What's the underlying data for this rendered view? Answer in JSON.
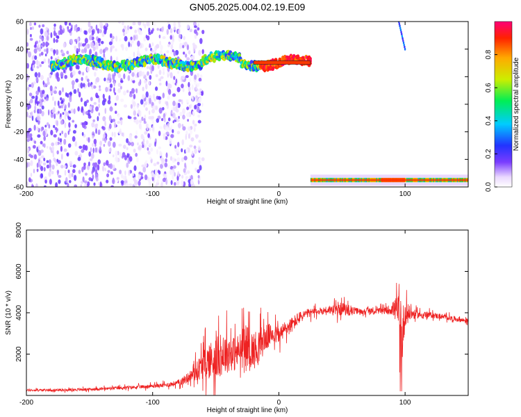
{
  "title": "GN05.2025.004.02.19.E09",
  "chart_data": [
    {
      "type": "heatmap",
      "xlabel": "Height of straight line (km)",
      "ylabel": "Frequency (Hz)",
      "xlim": [
        -200,
        150
      ],
      "ylim": [
        -60,
        60
      ],
      "x_ticks": [
        -200,
        -100,
        0,
        100
      ],
      "y_ticks": [
        -60,
        -40,
        -20,
        0,
        20,
        40,
        60
      ],
      "colorbar": {
        "label": "Normalized spectral amplitude",
        "range": [
          0,
          1
        ],
        "ticks": [
          "0.0",
          "0.2",
          "0.4",
          "0.6",
          "0.8"
        ],
        "tick_values": [
          0,
          0.2,
          0.4,
          0.6,
          0.8
        ]
      },
      "features": [
        {
          "name": "noise",
          "x_range": [
            -200,
            -75
          ],
          "y_range": [
            -60,
            60
          ],
          "amplitude": 0.15
        },
        {
          "name": "main-band",
          "x_range": [
            -180,
            25
          ],
          "center_hz": 30,
          "amplitude": 0.9
        },
        {
          "name": "lower-band",
          "x_range": [
            25,
            150
          ],
          "center_hz": -55,
          "amplitude": 0.9
        },
        {
          "name": "streak",
          "x_range": [
            95,
            100
          ],
          "y_range": [
            40,
            60
          ],
          "amplitude": 0.3
        }
      ]
    },
    {
      "type": "line",
      "xlabel": "Height of straight line (km)",
      "ylabel": "SNR (10 * v/v)",
      "xlim": [
        -200,
        150
      ],
      "ylim": [
        0,
        8000
      ],
      "x_ticks": [
        -200,
        -100,
        0,
        100
      ],
      "y_ticks": [
        2000,
        4000,
        6000,
        8000
      ],
      "color": "#ee2222",
      "series": [
        {
          "x": [
            -200,
            -180,
            -160,
            -140,
            -120,
            -100,
            -90,
            -80,
            -75,
            -70,
            -65,
            -60,
            -55,
            -50,
            -45,
            -40,
            -35,
            -30,
            -25,
            -20,
            -15,
            -10,
            -5,
            0,
            5,
            10,
            15,
            20,
            25,
            30,
            35,
            40,
            45,
            50,
            55,
            60,
            65,
            70,
            75,
            80,
            85,
            90,
            95,
            97,
            100,
            105,
            110,
            120,
            130,
            140,
            150
          ],
          "y": [
            250,
            260,
            280,
            320,
            380,
            450,
            500,
            600,
            750,
            950,
            1200,
            1500,
            1700,
            1800,
            1950,
            2100,
            2000,
            2200,
            2400,
            2150,
            2500,
            2800,
            3000,
            2900,
            3200,
            3400,
            3700,
            3900,
            4000,
            4050,
            4100,
            4150,
            4100,
            4200,
            4100,
            4100,
            4050,
            4100,
            4050,
            4100,
            4100,
            4200,
            4100,
            2500,
            4000,
            3950,
            3900,
            3900,
            3800,
            3700,
            3600
          ],
          "noise_amp": [
            80,
            80,
            90,
            100,
            110,
            130,
            150,
            200,
            300,
            400,
            700,
            1000,
            1300,
            1500,
            1400,
            1400,
            1200,
            1300,
            1400,
            1300,
            1200,
            900,
            700,
            600,
            600,
            550,
            450,
            350,
            300,
            250,
            250,
            300,
            400,
            450,
            350,
            250,
            200,
            200,
            200,
            200,
            250,
            450,
            1200,
            2500,
            900,
            400,
            250,
            200,
            180,
            170,
            170
          ]
        }
      ]
    }
  ]
}
